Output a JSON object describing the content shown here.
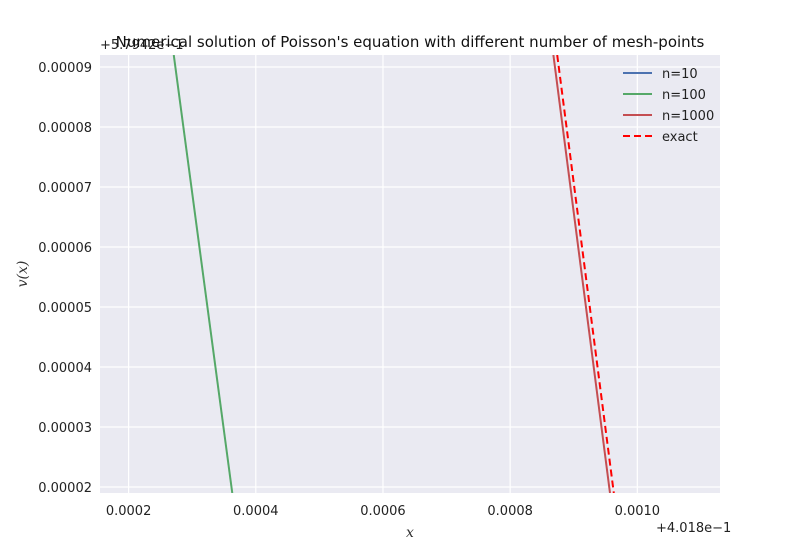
{
  "chart_data": {
    "type": "line",
    "title": "Numerical solution of Poisson's equation with different number of mesh-points",
    "xlabel": "x",
    "ylabel": "v(x)",
    "x_offset_text": "+4.018e−1",
    "y_offset_text": "+5.7942e−1",
    "xlim": [
      0.000155,
      0.00113
    ],
    "ylim": [
      1.9e-05,
      9.2e-05
    ],
    "x_ticks": [
      0.0002,
      0.0004,
      0.0006,
      0.0008,
      0.001
    ],
    "x_tick_labels": [
      "0.0002",
      "0.0004",
      "0.0006",
      "0.0008",
      "0.0010"
    ],
    "y_ticks": [
      2e-05,
      3e-05,
      4e-05,
      5e-05,
      6e-05,
      7e-05,
      8e-05,
      9e-05
    ],
    "y_tick_labels": [
      "0.00002",
      "0.00003",
      "0.00004",
      "0.00005",
      "0.00006",
      "0.00007",
      "0.00008",
      "0.00009"
    ],
    "grid": true,
    "legend_position": "top-right",
    "colors": {
      "background": "#EAEAF2",
      "grid": "#FFFFFF"
    },
    "series": [
      {
        "name": "n=10",
        "color": "#4C72B0",
        "dash": "solid",
        "x": [],
        "y": []
      },
      {
        "name": "n=100",
        "color": "#55A868",
        "dash": "solid",
        "x": [
          0.000271,
          0.000363
        ],
        "y": [
          9.2e-05,
          1.9e-05
        ]
      },
      {
        "name": "n=1000",
        "color": "#C44E52",
        "dash": "solid",
        "x": [
          0.000868,
          0.000957
        ],
        "y": [
          9.2e-05,
          1.9e-05
        ]
      },
      {
        "name": "exact",
        "color": "#FF0000",
        "dash": "dashed",
        "x": [
          0.000874,
          0.000963
        ],
        "y": [
          9.2e-05,
          1.9e-05
        ]
      }
    ]
  }
}
